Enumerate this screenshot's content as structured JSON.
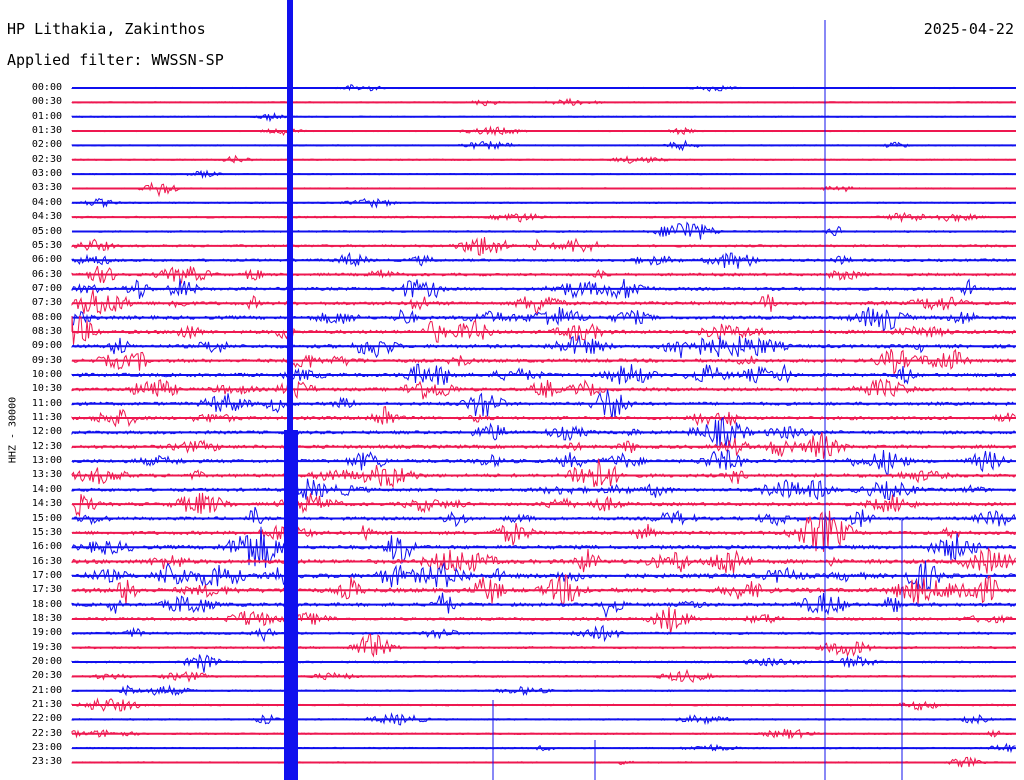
{
  "header": {
    "station": "HP Lithakia, Zakinthos",
    "filter": "Applied filter: WWSSN-SP",
    "date": "2025-04-22"
  },
  "axis": {
    "channel_label": "HHZ - 30000"
  },
  "colors": {
    "trace_a": "#1010ee",
    "trace_b": "#ee1850"
  },
  "traces": [
    {
      "time": "00:00",
      "activity": 0.08
    },
    {
      "time": "00:30",
      "activity": 0.1
    },
    {
      "time": "01:00",
      "activity": 0.08
    },
    {
      "time": "01:30",
      "activity": 0.08
    },
    {
      "time": "02:00",
      "activity": 0.1
    },
    {
      "time": "02:30",
      "activity": 0.12
    },
    {
      "time": "03:00",
      "activity": 0.1
    },
    {
      "time": "03:30",
      "activity": 0.12
    },
    {
      "time": "04:00",
      "activity": 0.15
    },
    {
      "time": "04:30",
      "activity": 0.22
    },
    {
      "time": "05:00",
      "activity": 0.25
    },
    {
      "time": "05:30",
      "activity": 0.35
    },
    {
      "time": "06:00",
      "activity": 0.4
    },
    {
      "time": "06:30",
      "activity": 0.45
    },
    {
      "time": "07:00",
      "activity": 0.5
    },
    {
      "time": "07:30",
      "activity": 0.6
    },
    {
      "time": "08:00",
      "activity": 0.6
    },
    {
      "time": "08:30",
      "activity": 0.6
    },
    {
      "time": "09:00",
      "activity": 0.6
    },
    {
      "time": "09:30",
      "activity": 0.6
    },
    {
      "time": "10:00",
      "activity": 0.6
    },
    {
      "time": "10:30",
      "activity": 0.55
    },
    {
      "time": "11:00",
      "activity": 0.55
    },
    {
      "time": "11:30",
      "activity": 0.55
    },
    {
      "time": "12:00",
      "activity": 0.55
    },
    {
      "time": "12:30",
      "activity": 0.6
    },
    {
      "time": "13:00",
      "activity": 0.6
    },
    {
      "time": "13:30",
      "activity": 0.6
    },
    {
      "time": "14:00",
      "activity": 0.55
    },
    {
      "time": "14:30",
      "activity": 0.55
    },
    {
      "time": "15:00",
      "activity": 0.55
    },
    {
      "time": "15:30",
      "activity": 0.6
    },
    {
      "time": "16:00",
      "activity": 0.65
    },
    {
      "time": "16:30",
      "activity": 0.75
    },
    {
      "time": "17:00",
      "activity": 0.8
    },
    {
      "time": "17:30",
      "activity": 0.8
    },
    {
      "time": "18:00",
      "activity": 0.6
    },
    {
      "time": "18:30",
      "activity": 0.45
    },
    {
      "time": "19:00",
      "activity": 0.35
    },
    {
      "time": "19:30",
      "activity": 0.3
    },
    {
      "time": "20:00",
      "activity": 0.25
    },
    {
      "time": "20:30",
      "activity": 0.25
    },
    {
      "time": "21:00",
      "activity": 0.2
    },
    {
      "time": "21:30",
      "activity": 0.2
    },
    {
      "time": "22:00",
      "activity": 0.18
    },
    {
      "time": "22:30",
      "activity": 0.18
    },
    {
      "time": "23:00",
      "activity": 0.15
    },
    {
      "time": "23:30",
      "activity": 0.15
    }
  ]
}
